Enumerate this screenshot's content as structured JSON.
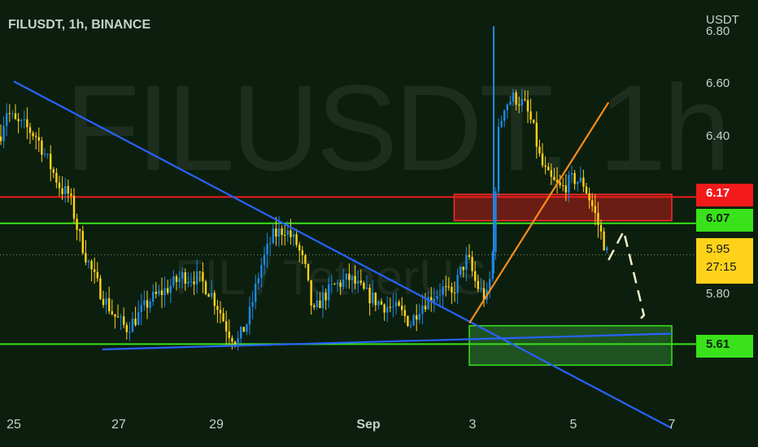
{
  "header": {
    "symbol": "FILUSDT, 1h, BINANCE",
    "currency": "USDT"
  },
  "watermark": {
    "primary": "FILUSDT, 1h",
    "secondary": "FIL / TetherUS"
  },
  "chart_data": {
    "type": "candlestick",
    "symbol": "FILUSDT",
    "interval": "1h",
    "exchange": "BINANCE",
    "x_ticks": [
      {
        "label": "25",
        "bold": false
      },
      {
        "label": "27",
        "bold": false
      },
      {
        "label": "29",
        "bold": false
      },
      {
        "label": "Sep",
        "bold": true
      },
      {
        "label": "3",
        "bold": false
      },
      {
        "label": "5",
        "bold": false
      },
      {
        "label": "7",
        "bold": false
      }
    ],
    "y_ticks": [
      {
        "label": "6.80",
        "value": 6.8
      },
      {
        "label": "6.60",
        "value": 6.6
      },
      {
        "label": "6.40",
        "value": 6.4
      },
      {
        "label": "5.80",
        "value": 5.8
      }
    ],
    "y_range": [
      5.28,
      6.88
    ],
    "price_tags": {
      "resistance": {
        "label": "6.17",
        "value": 6.17,
        "color": "#f21a1a"
      },
      "support_upper": {
        "label": "6.07",
        "value": 6.07,
        "color": "#39e21b"
      },
      "last": {
        "label": "5.95",
        "countdown": "27:15",
        "value": 5.95,
        "color": "#ffd21a"
      },
      "support_lower": {
        "label": "5.61",
        "value": 5.61,
        "color": "#39e21b"
      }
    },
    "candle_colors": {
      "up": "#1e88e5",
      "down": "#ffd21a"
    },
    "trendlines": [
      {
        "name": "descending",
        "from": {
          "day": 25.0,
          "price": 6.61
        },
        "to": {
          "day": 7.0,
          "price": 5.29
        },
        "color": "#2962ff"
      },
      {
        "name": "ascending-support",
        "from": {
          "day": 26.75,
          "price": 5.59
        },
        "to": {
          "day": 7.0,
          "price": 5.65
        },
        "color": "#2962ff"
      },
      {
        "name": "ascending-orange",
        "from": {
          "day": 3.0,
          "price": 5.69
        },
        "to": {
          "day": 5.75,
          "price": 6.53
        },
        "color": "#ff8c1a"
      }
    ],
    "zones": [
      {
        "name": "resistance-zone",
        "price_top": 6.18,
        "price_bottom": 6.08,
        "day_start": 2.7,
        "day_end": 7.0,
        "color": "#b71c1c"
      },
      {
        "name": "support-zone",
        "price_top": 5.68,
        "price_bottom": 5.53,
        "day_start": 3.0,
        "day_end": 7.0,
        "color": "#2e7d32"
      }
    ],
    "projection": [
      {
        "day": 5.75,
        "price": 5.93
      },
      {
        "day": 6.05,
        "price": 6.04
      },
      {
        "day": 6.45,
        "price": 5.72
      },
      {
        "day": 6.35,
        "price": 5.7
      }
    ]
  },
  "colors": {
    "background": "#0c1f0e",
    "red_line": "#f21a1a",
    "green_line": "#39e21b",
    "last_price_line": "#8a8a6a"
  }
}
